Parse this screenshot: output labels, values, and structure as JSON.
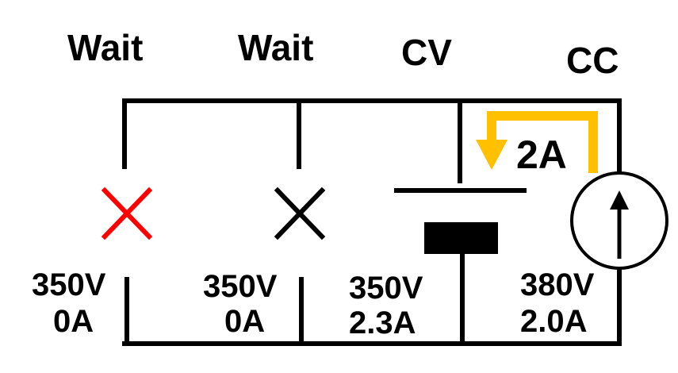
{
  "colors": {
    "wire": "#000000",
    "alert": "#ff0000",
    "current_arrow": "#ffc000",
    "background": "#ffffff"
  },
  "modes": [
    {
      "label": "Wait",
      "color": "#ff0000"
    },
    {
      "label": "Wait",
      "color": "#000000"
    },
    {
      "label": "CV",
      "color": "#000000"
    },
    {
      "label": "CC",
      "color": "#000000"
    }
  ],
  "branches": [
    {
      "voltage": "350V",
      "current": "0A",
      "current_color": "#ff0000",
      "symbol": "open-switch-x",
      "symbol_color": "#ff0000"
    },
    {
      "voltage": "350V",
      "current": "0A",
      "current_color": "#000000",
      "symbol": "open-switch-x",
      "symbol_color": "#000000"
    },
    {
      "voltage": "350V",
      "current": "2.3A",
      "current_color": "#000000",
      "symbol": "capacitor"
    },
    {
      "voltage": "380V",
      "current": "2.0A",
      "current_color": "#000000",
      "symbol": "current-source-up-arrow"
    }
  ],
  "loop_current": {
    "label": "2A",
    "color": "#ffc000",
    "icon": "down-arrow"
  }
}
